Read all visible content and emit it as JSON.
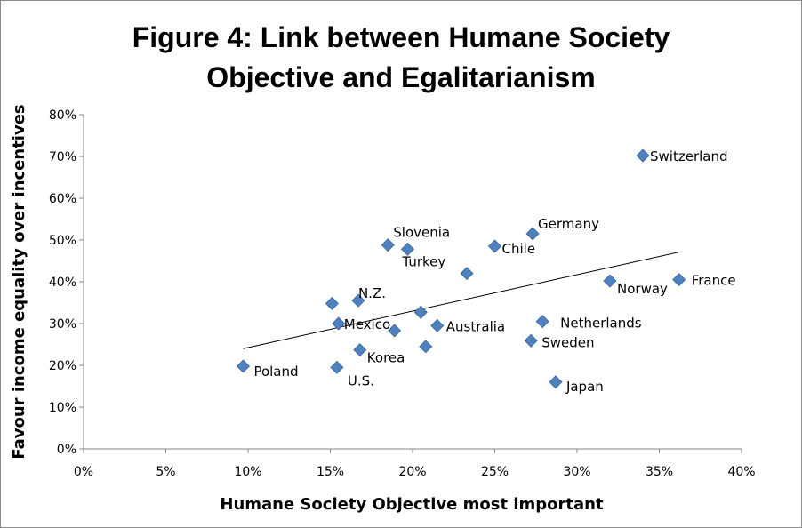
{
  "chart_data": {
    "type": "scatter",
    "title_line1": "Figure 4: Link between Humane Society",
    "title_line2": "Objective and Egalitarianism",
    "xlabel": "Humane Society Objective most important",
    "ylabel": "Favour income equality over incentives",
    "xlim": [
      0,
      0.4
    ],
    "ylim": [
      0,
      0.8
    ],
    "x_ticks": [
      "0%",
      "5%",
      "10%",
      "15%",
      "20%",
      "25%",
      "30%",
      "35%",
      "40%"
    ],
    "y_ticks": [
      "0%",
      "10%",
      "20%",
      "30%",
      "40%",
      "50%",
      "60%",
      "70%",
      "80%"
    ],
    "marker_color": "#4f81bd",
    "trendline": {
      "x": [
        0.097,
        0.362
      ],
      "y": [
        0.24,
        0.471
      ]
    },
    "points": [
      {
        "x": 0.34,
        "y": 0.702,
        "label": "Switzerland"
      },
      {
        "x": 0.273,
        "y": 0.515,
        "label": "Germany"
      },
      {
        "x": 0.25,
        "y": 0.485,
        "label": "Chile"
      },
      {
        "x": 0.185,
        "y": 0.488,
        "label": "Slovenia"
      },
      {
        "x": 0.197,
        "y": 0.478,
        "label": "Turkey"
      },
      {
        "x": 0.233,
        "y": 0.42,
        "label": ""
      },
      {
        "x": 0.362,
        "y": 0.405,
        "label": "France"
      },
      {
        "x": 0.32,
        "y": 0.402,
        "label": "Norway"
      },
      {
        "x": 0.151,
        "y": 0.348,
        "label": ""
      },
      {
        "x": 0.167,
        "y": 0.355,
        "label": "N.Z."
      },
      {
        "x": 0.155,
        "y": 0.3,
        "label": "Mexico"
      },
      {
        "x": 0.205,
        "y": 0.327,
        "label": ""
      },
      {
        "x": 0.215,
        "y": 0.295,
        "label": "Australia"
      },
      {
        "x": 0.189,
        "y": 0.283,
        "label": ""
      },
      {
        "x": 0.279,
        "y": 0.305,
        "label": "Netherlands"
      },
      {
        "x": 0.272,
        "y": 0.259,
        "label": "Sweden"
      },
      {
        "x": 0.208,
        "y": 0.245,
        "label": ""
      },
      {
        "x": 0.168,
        "y": 0.237,
        "label": "Korea"
      },
      {
        "x": 0.097,
        "y": 0.198,
        "label": "Poland"
      },
      {
        "x": 0.154,
        "y": 0.195,
        "label": "U.S."
      },
      {
        "x": 0.287,
        "y": 0.16,
        "label": "Japan"
      }
    ]
  }
}
